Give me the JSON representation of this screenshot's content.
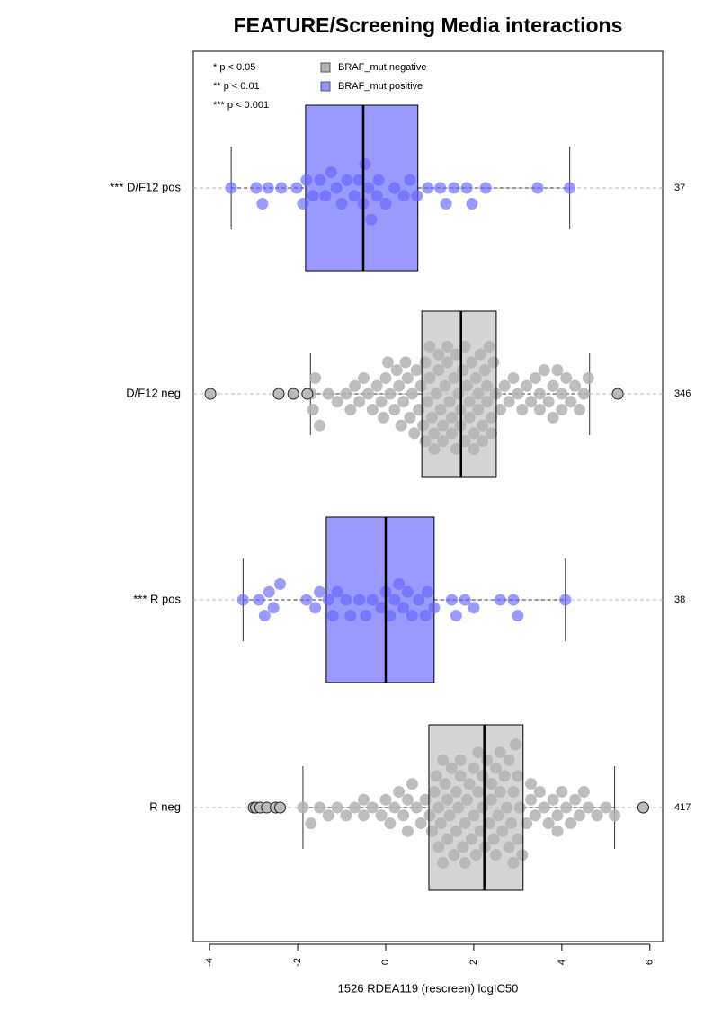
{
  "chart_data": {
    "type": "box",
    "title": "FEATURE/Screening Media interactions",
    "xlabel": "1526 RDEA119 (rescreen) logIC50",
    "xlim": [
      -4.37,
      6.29
    ],
    "xticks": [
      -4,
      -2,
      0,
      2,
      4,
      6
    ],
    "significance_legend": [
      "* p < 0.05",
      "** p < 0.01",
      "*** p < 0.001"
    ],
    "legend": [
      {
        "name": "BRAF_mut negative",
        "color": "#b3b3b3"
      },
      {
        "name": "BRAF_mut positive",
        "color": "#8f8fff"
      }
    ],
    "groups": [
      {
        "label": "*** D/F12 pos",
        "count": "37",
        "color": "#9999ff",
        "point_color": "#6666ff",
        "whisker_low": -3.51,
        "q1": -1.82,
        "median": -0.51,
        "q3": 0.73,
        "whisker_high": 4.18,
        "points": [
          -3.51,
          -2.94,
          -2.8,
          -2.67,
          -2.37,
          -2.02,
          -1.88,
          -1.8,
          -1.65,
          -1.49,
          -1.37,
          -1.24,
          -1.12,
          -1.0,
          -0.88,
          -0.71,
          -0.61,
          -0.51,
          -0.47,
          -0.39,
          -0.33,
          -0.16,
          0.0,
          0.2,
          0.41,
          0.71,
          0.96,
          1.24,
          1.37,
          1.55,
          1.84,
          1.96,
          2.27,
          3.45,
          4.18,
          -0.2,
          0.55
        ],
        "outliers": []
      },
      {
        "label": "D/F12 neg",
        "count": "346",
        "color": "#b3b3b3",
        "point_color": "#b3b3b3",
        "whisker_low": -1.71,
        "q1": 0.82,
        "median": 1.71,
        "q3": 2.51,
        "whisker_high": 4.63,
        "points": [
          -1.7,
          -1.65,
          -1.6,
          -1.5,
          -1.3,
          -1.1,
          -0.9,
          -0.8,
          -0.7,
          -0.6,
          -0.5,
          -0.4,
          -0.3,
          -0.2,
          -0.1,
          -0.05,
          0.0,
          0.05,
          0.1,
          0.2,
          0.25,
          0.3,
          0.35,
          0.4,
          0.45,
          0.5,
          0.55,
          0.6,
          0.65,
          0.7,
          0.75,
          0.8,
          0.85,
          0.9,
          0.95,
          1.0,
          1.05,
          1.1,
          1.15,
          1.2,
          1.25,
          1.3,
          1.35,
          1.4,
          1.45,
          1.5,
          1.55,
          1.6,
          1.65,
          1.7,
          1.75,
          1.8,
          1.85,
          1.9,
          1.95,
          2.0,
          2.05,
          2.1,
          2.15,
          2.2,
          2.25,
          2.3,
          2.35,
          2.4,
          2.45,
          2.5,
          2.6,
          2.7,
          2.8,
          2.9,
          3.0,
          3.1,
          3.2,
          3.3,
          3.4,
          3.5,
          3.6,
          3.7,
          3.8,
          3.9,
          4.0,
          4.1,
          4.2,
          4.3,
          4.4,
          4.5,
          4.6,
          0.9,
          1.1,
          1.3,
          1.5,
          1.7,
          1.9,
          2.1,
          2.3,
          1.0,
          1.2,
          1.4,
          1.6,
          1.8,
          2.0,
          2.2,
          2.4,
          3.5,
          3.8,
          4.0
        ],
        "outliers": [
          -3.98,
          -2.43,
          -2.1,
          -1.78,
          5.27
        ]
      },
      {
        "label": "*** R pos",
        "count": "38",
        "color": "#9999ff",
        "point_color": "#6666ff",
        "whisker_low": -3.24,
        "q1": -1.35,
        "median": 0.0,
        "q3": 1.1,
        "whisker_high": 4.08,
        "points": [
          -3.24,
          -2.88,
          -2.75,
          -2.65,
          -2.55,
          -2.4,
          -1.8,
          -1.6,
          -1.5,
          -1.3,
          -1.2,
          -1.1,
          -0.8,
          -0.6,
          -0.45,
          -0.3,
          -0.1,
          0.0,
          0.1,
          0.2,
          0.4,
          0.5,
          0.6,
          0.75,
          0.9,
          0.95,
          1.1,
          1.5,
          1.6,
          1.8,
          2.0,
          2.6,
          2.9,
          3.0,
          4.08,
          -0.9,
          0.3
        ],
        "outliers": []
      },
      {
        "label": "R neg",
        "count": "417",
        "color": "#b3b3b3",
        "point_color": "#b3b3b3",
        "whisker_low": -1.88,
        "q1": 0.98,
        "median": 2.24,
        "q3": 3.12,
        "whisker_high": 5.2,
        "points": [
          -1.88,
          -1.7,
          -1.5,
          -1.3,
          -1.1,
          -0.9,
          -0.7,
          -0.5,
          -0.3,
          -0.1,
          0.0,
          0.1,
          0.2,
          0.3,
          0.4,
          0.5,
          0.6,
          0.7,
          0.8,
          0.9,
          1.0,
          1.05,
          1.1,
          1.15,
          1.2,
          1.25,
          1.3,
          1.35,
          1.4,
          1.45,
          1.5,
          1.55,
          1.6,
          1.65,
          1.7,
          1.75,
          1.8,
          1.85,
          1.9,
          1.95,
          2.0,
          2.05,
          2.1,
          2.15,
          2.2,
          2.25,
          2.3,
          2.35,
          2.4,
          2.45,
          2.5,
          2.55,
          2.6,
          2.65,
          2.7,
          2.75,
          2.8,
          2.85,
          2.9,
          2.95,
          3.0,
          3.05,
          3.1,
          3.2,
          3.3,
          3.4,
          3.5,
          3.6,
          3.7,
          3.8,
          3.9,
          4.0,
          4.1,
          4.2,
          4.3,
          4.4,
          4.5,
          4.6,
          4.8,
          5.0,
          5.2,
          1.2,
          1.4,
          1.6,
          1.8,
          2.0,
          2.2,
          2.4,
          2.6,
          2.8,
          3.0,
          1.3,
          1.7,
          2.1,
          2.5,
          2.9,
          3.3,
          3.9,
          0.5,
          -0.5
        ],
        "outliers": [
          -3.0,
          -2.95,
          -2.85,
          -2.7,
          -2.5,
          -2.4,
          5.85
        ]
      }
    ]
  }
}
